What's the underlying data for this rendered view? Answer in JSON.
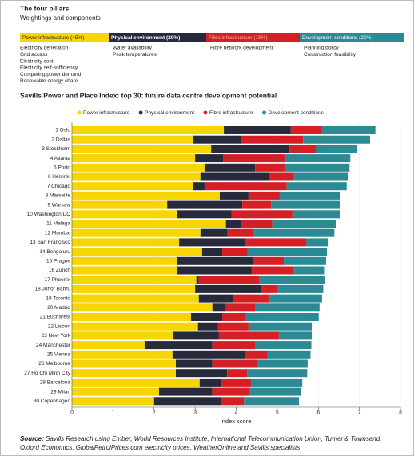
{
  "header": {
    "title": "The four pillars",
    "subtitle": "Weightings and components"
  },
  "pillars": [
    {
      "label": "Power infrastructure (45%)",
      "color": "#f7d500",
      "components": [
        "Electricity generation",
        "Grid access",
        "Electricity cost",
        "Electricity self-sufficiency",
        "Competing power demand",
        "Renewable energy share"
      ]
    },
    {
      "label": "Physical environment (20%)",
      "color": "#262a3b",
      "components": [
        "Water availability",
        "Peak temperatures"
      ]
    },
    {
      "label": "Fibre infrastructure (15%)",
      "color": "#d51f26",
      "components": [
        "Fibre network development"
      ]
    },
    {
      "label": "Development conditions (20%)",
      "color": "#2b8a93",
      "components": [
        "Planning policy",
        "Construction feasibility"
      ]
    }
  ],
  "chart_data": {
    "type": "stacked_barh",
    "title": "Savills Power and Place Index: top 30: future data centre development potential",
    "x_label": "Index score",
    "categories": [
      "1 Oslo",
      "2 Dallas",
      "3 Stockholm",
      "4 Atlanta",
      "5 Porto",
      "6 Helsinki",
      "7 Chicago",
      "8 Marseille",
      "9 Warsaw",
      "10 Washington DC",
      "11 Malaga",
      "12 Mumbai",
      "13 San Francisco",
      "14 Bengaluru",
      "15 Prague",
      "16 Zurich",
      "17 Phoenix",
      "18 Johor Bahru",
      "19 Toronto",
      "20 Madrid",
      "21 Bucharest",
      "22 Lisbon",
      "23 New York",
      "24 Manchester",
      "25 Vienna",
      "26 Melbourne",
      "27 Ho Chi Minh City",
      "28 Barcelona",
      "29 Milan",
      "30 Copenhagen"
    ],
    "series": [
      {
        "name": "Power infrastructure",
        "color": "#f7d500",
        "values": [
          3.7,
          2.96,
          3.39,
          3.0,
          3.23,
          3.13,
          2.94,
          3.6,
          2.32,
          2.57,
          3.75,
          3.13,
          2.61,
          3.17,
          2.55,
          2.57,
          3.03,
          3.0,
          3.09,
          3.42,
          2.9,
          3.07,
          2.47,
          1.77,
          2.45,
          2.53,
          2.53,
          3.11,
          2.12,
          2.0
        ]
      },
      {
        "name": "Physical environment",
        "color": "#262a3b",
        "values": [
          1.63,
          1.15,
          1.91,
          0.68,
          1.23,
          1.69,
          0.29,
          0.7,
          1.83,
          1.32,
          0.37,
          0.66,
          1.6,
          0.49,
          1.85,
          1.8,
          0.06,
          1.6,
          0.84,
          0.31,
          0.76,
          0.49,
          1.11,
          1.65,
          1.77,
          0.89,
          1.25,
          0.53,
          1.3,
          1.63
        ]
      },
      {
        "name": "Fibre infrastructure",
        "color": "#d51f26",
        "values": [
          0.76,
          1.52,
          0.64,
          1.52,
          0.72,
          0.58,
          2.0,
          0.76,
          0.7,
          1.48,
          0.76,
          0.62,
          1.5,
          0.62,
          0.76,
          1.03,
          1.48,
          0.41,
          0.88,
          0.74,
          0.58,
          0.74,
          1.46,
          1.05,
          0.54,
          1.09,
          0.49,
          0.72,
          0.91,
          0.56
        ]
      },
      {
        "name": "Development conditions",
        "color": "#2b8a93",
        "values": [
          1.3,
          1.63,
          1.01,
          1.58,
          1.58,
          1.32,
          1.46,
          1.48,
          1.67,
          1.15,
          1.56,
          1.98,
          0.54,
          1.93,
          1.03,
          0.76,
          1.6,
          1.11,
          1.28,
          1.56,
          1.77,
          1.56,
          0.8,
          1.36,
          1.05,
          1.23,
          1.46,
          1.25,
          1.25,
          1.34
        ]
      }
    ],
    "xlim": [
      0,
      8
    ],
    "xticks": [
      0,
      1,
      2,
      3,
      4,
      5,
      6,
      7,
      8
    ]
  },
  "source": {
    "label": "Source:",
    "text": "Savills Research using Ember, World Resources Institute, International Telecommunication Union, Turner & Townsend, Oxford Economics, GlobalPetrolPrices.com electricity prices, WeatherOnline and Savills specialists"
  }
}
